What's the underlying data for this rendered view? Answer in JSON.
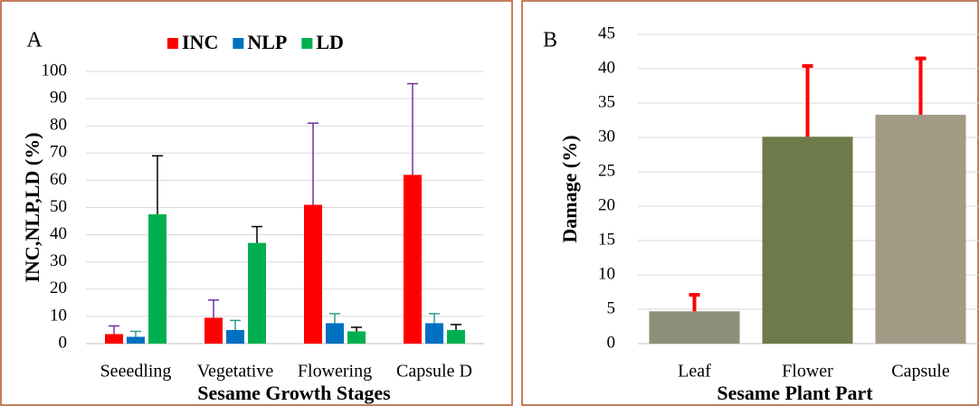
{
  "chart_data": [
    {
      "type": "bar",
      "title": "A",
      "ylabel": "INC,NLP,LD (%)",
      "xlabel": "Sesame Growth Stages",
      "categories": [
        "Seeedling",
        "Vegetative",
        "Flowering",
        "Capsule D"
      ],
      "series": [
        {
          "name": "INC",
          "color": "#ff0000",
          "error_color": "#7030a0",
          "values": [
            3.5,
            9.5,
            51,
            62
          ],
          "errors": [
            3,
            6.5,
            30,
            33.5
          ]
        },
        {
          "name": "NLP",
          "color": "#0070c0",
          "error_color": "#2e9e8f",
          "values": [
            2.5,
            5,
            7.5,
            7.5
          ],
          "errors": [
            2,
            3.5,
            3.5,
            3.5
          ]
        },
        {
          "name": "LD",
          "color": "#00b050",
          "error_color": "#000000",
          "values": [
            47.5,
            37,
            4.5,
            5
          ],
          "errors": [
            21.5,
            6,
            1.5,
            2
          ]
        }
      ],
      "ylim": [
        0,
        100
      ],
      "yticks": [
        0,
        10,
        20,
        30,
        40,
        50,
        60,
        70,
        80,
        90,
        100
      ],
      "grid": true,
      "legend": "top"
    },
    {
      "type": "bar",
      "title": "B",
      "ylabel": "Damage (%)",
      "xlabel": "Sesame Plant Part",
      "categories": [
        "Leaf",
        "Flower",
        "Capsule"
      ],
      "values": [
        4.7,
        30.1,
        33.3
      ],
      "errors": [
        2.4,
        10.3,
        8.2
      ],
      "colors": [
        "#8c9079",
        "#6d7a4a",
        "#a39a86"
      ],
      "error_color": "#ff0000",
      "ylim": [
        0,
        45
      ],
      "yticks": [
        0,
        5,
        10,
        15,
        20,
        25,
        30,
        35,
        40,
        45
      ],
      "grid": true
    }
  ]
}
